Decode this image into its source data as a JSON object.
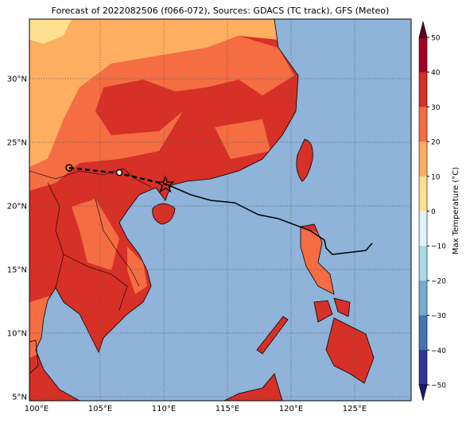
{
  "title": "Forecast of 2022082506 (f066-072), Sources: GDACS (TC track), GFS (Meteo)",
  "lat_labels": [
    "30°N",
    "25°N",
    "20°N",
    "15°N",
    "10°N",
    "5°N"
  ],
  "lon_labels": [
    "100°E",
    "105°E",
    "110°E",
    "115°E",
    "120°E",
    "125°E"
  ],
  "colorbar": {
    "label": "Max Temperature (°C)",
    "ticks": [
      "50",
      "40",
      "30",
      "20",
      "10",
      "0",
      "−10",
      "−20",
      "−30",
      "−40",
      "−50"
    ]
  }
}
